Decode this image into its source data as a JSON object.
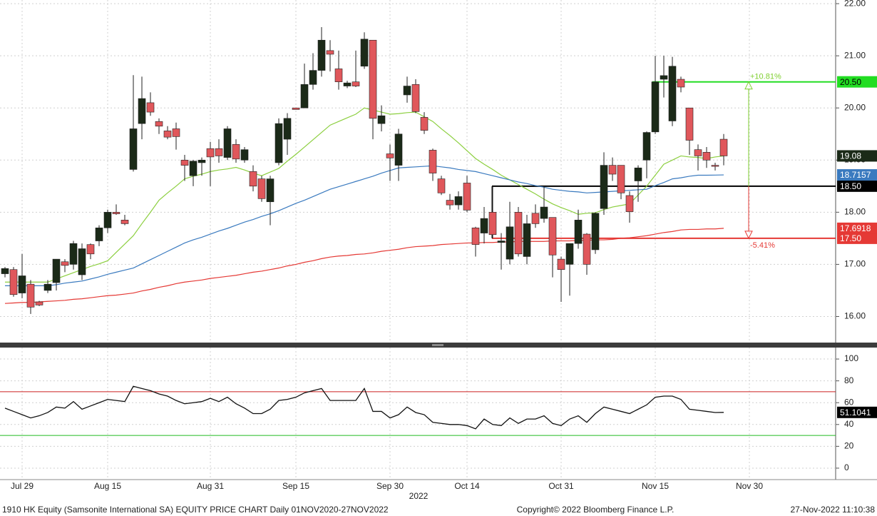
{
  "chart_data": [
    {
      "type": "candlestick",
      "categories": [
        null,
        null,
        "Jul 29",
        null,
        null,
        null,
        null,
        null,
        null,
        null,
        null,
        null,
        "Aug 15",
        null,
        null,
        null,
        null,
        null,
        null,
        null,
        null,
        null,
        null,
        null,
        "Aug 31",
        null,
        null,
        null,
        null,
        null,
        null,
        null,
        null,
        null,
        "Sep 15",
        null,
        null,
        null,
        null,
        null,
        null,
        null,
        null,
        null,
        null,
        "Sep 30",
        null,
        null,
        null,
        null,
        null,
        null,
        null,
        null,
        "Oct 14",
        null,
        null,
        null,
        null,
        null,
        null,
        null,
        null,
        null,
        null,
        "Oct 31",
        null,
        null,
        null,
        null,
        null,
        null,
        null,
        null,
        null,
        null,
        "Nov 15",
        null,
        null,
        null,
        null,
        null,
        null,
        null,
        null,
        null,
        null,
        "Nov 30",
        null,
        null,
        null,
        null,
        null,
        null,
        null,
        null,
        null,
        null
      ],
      "x_sublabel": "2022",
      "up_color": "#1b2a18",
      "down_color": "#e0575b",
      "open": [
        16.82,
        16.9,
        16.45,
        16.62,
        16.28,
        16.5,
        16.65,
        17.05,
        17.0,
        16.8,
        17.38,
        17.45,
        17.7,
        18.0,
        17.85,
        18.82,
        19.7,
        20.1,
        19.74,
        19.56,
        19.6,
        19.0,
        18.7,
        18.95,
        19.22,
        19.22,
        19.05,
        19.3,
        19.0,
        18.78,
        18.64,
        18.2,
        18.95,
        19.4,
        20.0,
        20.0,
        20.45,
        20.72,
        21.1,
        20.75,
        20.42,
        20.5,
        20.8,
        21.3,
        19.7,
        19.12,
        18.9,
        20.25,
        20.45,
        19.82,
        19.19,
        18.64,
        18.23,
        18.14,
        18.56,
        17.7,
        17.6,
        18.0,
        17.42,
        17.1,
        18.0,
        17.15,
        17.98,
        17.88,
        17.9,
        17.1,
        17.0,
        17.4,
        17.58,
        17.28,
        18.07,
        18.9,
        18.9,
        18.32,
        18.6,
        19.0,
        19.54,
        20.55,
        19.75,
        20.55,
        20.0,
        19.2,
        19.15,
        18.9,
        19.4,
        null,
        null,
        null,
        null,
        null,
        null,
        null,
        null,
        null,
        null,
        null,
        null,
        null
      ],
      "high": [
        16.95,
        16.95,
        17.2,
        16.7,
        16.3,
        16.7,
        17.1,
        17.1,
        17.45,
        17.4,
        17.4,
        17.75,
        18.05,
        18.15,
        17.95,
        20.63,
        20.6,
        20.3,
        19.8,
        19.65,
        19.72,
        19.1,
        19.0,
        19.05,
        19.35,
        19.4,
        19.65,
        19.4,
        19.25,
        18.9,
        18.7,
        18.7,
        19.8,
        19.9,
        20.0,
        20.85,
        21.05,
        21.55,
        21.3,
        21.1,
        20.52,
        21.1,
        21.45,
        21.3,
        20.05,
        19.3,
        19.6,
        20.6,
        20.55,
        19.92,
        19.22,
        18.7,
        18.35,
        18.4,
        18.7,
        17.72,
        18.1,
        18.5,
        17.6,
        18.2,
        18.1,
        17.95,
        18.15,
        18.5,
        17.9,
        17.15,
        17.4,
        18.05,
        17.6,
        18.0,
        19.15,
        19.05,
        18.9,
        18.4,
        18.9,
        19.55,
        21.0,
        21.0,
        20.98,
        20.6,
        20.0,
        19.3,
        19.25,
        18.95,
        19.5,
        null,
        null,
        null,
        null,
        null,
        null,
        null,
        null,
        null,
        null,
        null,
        null,
        null
      ],
      "low": [
        16.75,
        16.38,
        16.35,
        16.05,
        16.2,
        16.45,
        16.5,
        16.85,
        16.9,
        16.7,
        17.1,
        17.35,
        17.6,
        17.95,
        17.75,
        18.78,
        19.4,
        19.85,
        19.5,
        19.4,
        19.2,
        18.6,
        18.5,
        18.7,
        18.5,
        18.95,
        19.0,
        18.95,
        18.95,
        18.4,
        18.2,
        17.75,
        18.9,
        19.1,
        19.97,
        20.0,
        20.35,
        20.6,
        20.7,
        20.35,
        20.38,
        20.4,
        20.75,
        19.4,
        19.55,
        18.6,
        18.6,
        20.1,
        19.9,
        19.5,
        18.6,
        18.33,
        18.05,
        18.05,
        18.0,
        17.15,
        17.4,
        17.5,
        16.9,
        17.0,
        17.15,
        17.0,
        17.7,
        17.8,
        16.75,
        16.28,
        16.4,
        17.3,
        16.8,
        17.2,
        17.95,
        18.6,
        18.25,
        17.8,
        18.2,
        18.65,
        19.5,
        20.2,
        19.65,
        20.3,
        19.1,
        18.8,
        18.85,
        18.8,
        18.9,
        null,
        null,
        null,
        null,
        null,
        null,
        null,
        null,
        null,
        null,
        null,
        null,
        null
      ],
      "close": [
        16.92,
        16.42,
        16.78,
        16.18,
        16.22,
        16.62,
        17.1,
        16.98,
        17.4,
        17.3,
        17.2,
        17.7,
        18.0,
        17.97,
        17.78,
        19.6,
        20.18,
        19.92,
        19.65,
        19.44,
        19.45,
        18.9,
        18.98,
        19.0,
        19.06,
        19.08,
        19.6,
        19.02,
        19.2,
        18.5,
        18.26,
        18.64,
        19.7,
        19.8,
        19.97,
        20.45,
        20.72,
        21.3,
        21.03,
        20.5,
        20.48,
        20.42,
        21.32,
        19.8,
        19.85,
        19.04,
        19.5,
        20.42,
        19.93,
        19.57,
        18.75,
        18.37,
        18.14,
        18.3,
        18.04,
        17.38,
        17.88,
        17.57,
        17.45,
        17.72,
        17.2,
        17.78,
        17.78,
        18.1,
        17.18,
        16.9,
        17.4,
        17.85,
        17.0,
        17.98,
        18.9,
        18.73,
        18.37,
        18.01,
        18.85,
        19.53,
        20.5,
        20.62,
        20.8,
        20.4,
        19.38,
        19.08,
        19.0,
        18.88,
        19.08,
        null,
        null,
        null,
        null,
        null,
        null,
        null,
        null,
        null,
        null,
        null,
        null,
        null
      ],
      "close_label_color": "#1b2a18",
      "series": [
        {
          "color": "#8ccf3f",
          "values": [
            16.66,
            16.66,
            16.66,
            16.66,
            16.66,
            16.66,
            16.72,
            16.78,
            16.84,
            16.9,
            16.96,
            17.01,
            17.07,
            17.23,
            17.39,
            17.55,
            17.78,
            18.0,
            18.23,
            18.37,
            18.5,
            18.64,
            18.69,
            18.73,
            18.78,
            18.81,
            18.83,
            18.86,
            18.81,
            18.75,
            18.7,
            18.77,
            18.84,
            18.98,
            19.11,
            19.25,
            19.39,
            19.53,
            19.67,
            19.74,
            19.81,
            19.88,
            20.0,
            19.96,
            19.92,
            19.88,
            19.89,
            19.91,
            19.92,
            19.83,
            19.74,
            19.6,
            19.47,
            19.33,
            19.18,
            19.03,
            18.92,
            18.82,
            18.71,
            18.62,
            18.53,
            18.44,
            18.35,
            18.25,
            18.16,
            18.09,
            18.03,
            17.96,
            17.98,
            17.99,
            18.05,
            18.1,
            18.13,
            18.16,
            18.33,
            18.5,
            18.71,
            18.92,
            19.0,
            19.08,
            19.06,
            19.05,
            19.03,
            19.06,
            19.08,
            null,
            null,
            null,
            null,
            null,
            null,
            null,
            null,
            null,
            null,
            null,
            null,
            null
          ]
        },
        {
          "color": "#3a7abf",
          "last_value_label": true,
          "values": [
            16.59,
            16.59,
            16.59,
            16.59,
            16.59,
            16.59,
            16.61,
            16.64,
            16.66,
            16.68,
            16.72,
            16.76,
            16.81,
            16.85,
            16.89,
            16.93,
            17.01,
            17.09,
            17.17,
            17.25,
            17.33,
            17.41,
            17.47,
            17.52,
            17.58,
            17.64,
            17.69,
            17.75,
            17.81,
            17.86,
            17.92,
            17.97,
            18.03,
            18.1,
            18.17,
            18.23,
            18.3,
            18.37,
            18.44,
            18.49,
            18.54,
            18.59,
            18.64,
            18.69,
            18.75,
            18.8,
            18.85,
            18.86,
            18.87,
            18.88,
            18.89,
            18.87,
            18.85,
            18.82,
            18.8,
            18.78,
            18.74,
            18.7,
            18.66,
            18.62,
            18.58,
            18.55,
            18.51,
            18.48,
            18.44,
            18.42,
            18.4,
            18.39,
            18.37,
            18.38,
            18.39,
            18.4,
            18.41,
            18.42,
            18.43,
            18.44,
            18.51,
            18.57,
            18.64,
            18.66,
            18.69,
            18.71,
            18.71,
            18.712,
            18.7157,
            null,
            null,
            null,
            null,
            null,
            null,
            null,
            null,
            null,
            null,
            null,
            null,
            null
          ]
        },
        {
          "color": "#e53935",
          "last_value_label": true,
          "values": [
            16.25,
            16.26,
            16.27,
            16.27,
            16.28,
            16.29,
            16.3,
            16.31,
            16.33,
            16.34,
            16.36,
            16.38,
            16.4,
            16.41,
            16.43,
            16.45,
            16.49,
            16.52,
            16.56,
            16.59,
            16.63,
            16.66,
            16.68,
            16.7,
            16.73,
            16.75,
            16.77,
            16.79,
            16.82,
            16.85,
            16.87,
            16.9,
            16.93,
            16.97,
            17.0,
            17.04,
            17.07,
            17.11,
            17.14,
            17.16,
            17.17,
            17.19,
            17.2,
            17.22,
            17.25,
            17.27,
            17.29,
            17.32,
            17.34,
            17.35,
            17.36,
            17.38,
            17.39,
            17.4,
            17.41,
            17.41,
            17.42,
            17.42,
            17.43,
            17.43,
            17.44,
            17.44,
            17.44,
            17.44,
            17.45,
            17.45,
            17.45,
            17.46,
            17.46,
            17.47,
            17.47,
            17.48,
            17.5,
            17.51,
            17.53,
            17.55,
            17.58,
            17.61,
            17.63,
            17.66,
            17.67,
            17.67,
            17.68,
            17.68,
            17.6918,
            null,
            null,
            null,
            null,
            null,
            null,
            null,
            null,
            null,
            null,
            null,
            null,
            null
          ]
        }
      ],
      "levels": [
        {
          "value": 20.5,
          "label": "20.50",
          "color": "#22dd22"
        },
        {
          "value": 18.5,
          "label": "18.50",
          "color": "#000000"
        },
        {
          "value": 17.5,
          "label": "17.50",
          "color": "#e53935"
        }
      ],
      "annotations": [
        {
          "text": "+10.81%",
          "color": "#7fcf2f"
        },
        {
          "text": "-5.41%",
          "color": "#e53935"
        }
      ],
      "ylim": [
        15.5,
        22.07
      ],
      "yticks": [
        {
          "value": 16,
          "label": "16.00"
        },
        {
          "value": 17,
          "label": "17.00"
        },
        {
          "value": 18,
          "label": "18.00"
        },
        {
          "value": 19,
          "label": "19.00"
        },
        {
          "value": 20,
          "label": "20.00"
        },
        {
          "value": 21,
          "label": "21.00"
        },
        {
          "value": 22,
          "label": "22.00"
        }
      ],
      "grid": true
    },
    {
      "type": "line",
      "color": "#111111",
      "values": [
        55,
        52,
        49,
        46,
        48,
        51,
        56,
        55,
        61,
        54,
        57,
        60,
        63,
        62,
        61,
        75,
        73,
        71,
        68,
        66,
        62,
        59,
        60,
        61,
        64,
        61,
        65,
        59,
        55,
        50,
        50,
        54,
        62,
        63,
        65,
        69,
        71,
        73,
        62,
        62,
        62,
        62,
        73,
        52,
        52,
        46,
        49,
        56,
        51,
        49,
        42,
        41,
        40,
        40,
        39,
        36,
        45,
        40,
        39,
        46,
        41,
        45,
        45,
        48,
        41,
        39,
        45,
        48,
        42,
        50,
        56,
        54,
        52,
        50,
        54,
        58,
        65,
        66,
        66,
        63,
        54,
        53,
        52,
        51,
        51.1041,
        null,
        null,
        null,
        null,
        null,
        null,
        null,
        null,
        null,
        null,
        null,
        null,
        null
      ],
      "levels": [
        {
          "value": 70,
          "color": "#cc2222"
        },
        {
          "value": 30,
          "color": "#22bb22"
        }
      ],
      "ylim": [
        -10.5,
        110.5
      ],
      "yticks": [
        0,
        20,
        40,
        60,
        80,
        100
      ],
      "grid": true
    }
  ],
  "footer": {
    "left": "1910 HK Equity (Samsonite International SA) EQUITY PRICE CHART  Daily 01NOV2020-27NOV2022",
    "center": "Copyright© 2022 Bloomberg Finance L.P.",
    "right": "27-Nov-2022 11:10:38"
  }
}
